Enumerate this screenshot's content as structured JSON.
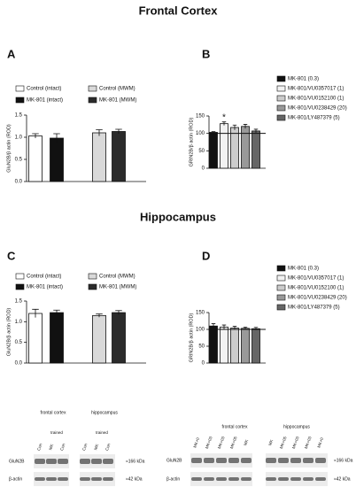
{
  "headings": {
    "frontal": "Frontal Cortex",
    "hippocampus": "Hippocampus"
  },
  "chart_data": [
    {
      "type": "bar",
      "panel": "A",
      "y_label": "GluN2B/β actin (ROD)",
      "ylim": [
        0,
        1.5
      ],
      "yticks": [
        {
          "value": 0,
          "label": "0.0"
        },
        0.5,
        {
          "value": 1,
          "label": "1.0"
        },
        1.5
      ],
      "series": [
        {
          "name": "Control (intact)",
          "color": "#ffffff",
          "values": [
            1.03
          ],
          "errors": [
            0.05
          ]
        },
        {
          "name": "MK-801 (intact)",
          "color": "#111111",
          "values": [
            0.98
          ],
          "errors": [
            0.1
          ]
        },
        {
          "name": "Control (MWM)",
          "color": "#d9d9d9",
          "values": [
            1.1
          ],
          "errors": [
            0.07
          ]
        },
        {
          "name": "MK-801 (MWM)",
          "color": "#2b2b2b",
          "values": [
            1.13
          ],
          "errors": [
            0.05
          ]
        }
      ]
    },
    {
      "type": "bar",
      "panel": "B",
      "y_label": "GRIN2B/β actin (ROD)",
      "ylim": [
        0,
        150
      ],
      "yticks": [
        0,
        50,
        100,
        150
      ],
      "hline": 100,
      "series": [
        {
          "name": "MK-801 (0.3)",
          "color": "#111111",
          "values": [
            103
          ],
          "errors": [
            2
          ]
        },
        {
          "name": "MK-801/VU0357017 (1)",
          "color": "#f2f2f2",
          "values": [
            128
          ],
          "errors": [
            5
          ],
          "annotation": "*"
        },
        {
          "name": "MK-801/VU0152100 (1)",
          "color": "#cccccc",
          "values": [
            117
          ],
          "errors": [
            7
          ]
        },
        {
          "name": "MK-801/VU0238429 (20)",
          "color": "#999999",
          "values": [
            120
          ],
          "errors": [
            6
          ]
        },
        {
          "name": "MK-801/LY487379 (5)",
          "color": "#666666",
          "values": [
            107
          ],
          "errors": [
            5
          ]
        }
      ]
    },
    {
      "type": "bar",
      "panel": "C",
      "y_label": "GluN2B/β actin (ROD)",
      "ylim": [
        0,
        1.5
      ],
      "yticks": [
        {
          "value": 0,
          "label": "0.0"
        },
        0.5,
        {
          "value": 1,
          "label": "1.0"
        },
        1.5
      ],
      "series": [
        {
          "name": "Control (intact)",
          "color": "#ffffff",
          "values": [
            1.2
          ],
          "errors": [
            0.1
          ]
        },
        {
          "name": "MK-801 (intact)",
          "color": "#111111",
          "values": [
            1.22
          ],
          "errors": [
            0.06
          ]
        },
        {
          "name": "Control (MWM)",
          "color": "#d9d9d9",
          "values": [
            1.15
          ],
          "errors": [
            0.04
          ]
        },
        {
          "name": "MK-801 (MWM)",
          "color": "#2b2b2b",
          "values": [
            1.22
          ],
          "errors": [
            0.05
          ]
        }
      ]
    },
    {
      "type": "bar",
      "panel": "D",
      "y_label": "GRIN2B/β actin (ROD)",
      "ylim": [
        0,
        150
      ],
      "yticks": [
        0,
        50,
        100,
        150
      ],
      "hline": 100,
      "series": [
        {
          "name": "MK-801 (0.3)",
          "color": "#111111",
          "values": [
            110
          ],
          "errors": [
            7
          ]
        },
        {
          "name": "MK-801/VU0357017 (1)",
          "color": "#f2f2f2",
          "values": [
            107
          ],
          "errors": [
            6
          ]
        },
        {
          "name": "MK-801/VU0152100 (1)",
          "color": "#cccccc",
          "values": [
            104
          ],
          "errors": [
            5
          ]
        },
        {
          "name": "MK-801/VU0238429 (20)",
          "color": "#999999",
          "values": [
            103
          ],
          "errors": [
            4
          ]
        },
        {
          "name": "MK-801/LY487379 (5)",
          "color": "#666666",
          "values": [
            102
          ],
          "errors": [
            4
          ]
        }
      ]
    }
  ],
  "blots": [
    {
      "regions": [
        "frontal cortex",
        "hippocampus"
      ],
      "subheaders": [
        "trained",
        "trained"
      ],
      "lanes": [
        [
          "Con",
          "MK",
          "Con"
        ],
        [
          "Con",
          "MK",
          "Con"
        ]
      ],
      "rows": [
        "GluN2B",
        "β-actin"
      ],
      "sizes": [
        "≈166 kDa",
        "≈42 kDa"
      ]
    },
    {
      "regions": [
        "frontal cortex",
        "hippocampus"
      ],
      "lanes": [
        [
          "MK+0",
          "MK+03",
          "MK+03",
          "MK+05",
          "MK"
        ],
        [
          "MK",
          "MK+05",
          "MK+03",
          "MK+03",
          "MK+0"
        ]
      ],
      "rows": [
        "GluN2B",
        "β-actin"
      ],
      "sizes": [
        "≈166 kDa",
        "≈42 kDa"
      ]
    }
  ]
}
